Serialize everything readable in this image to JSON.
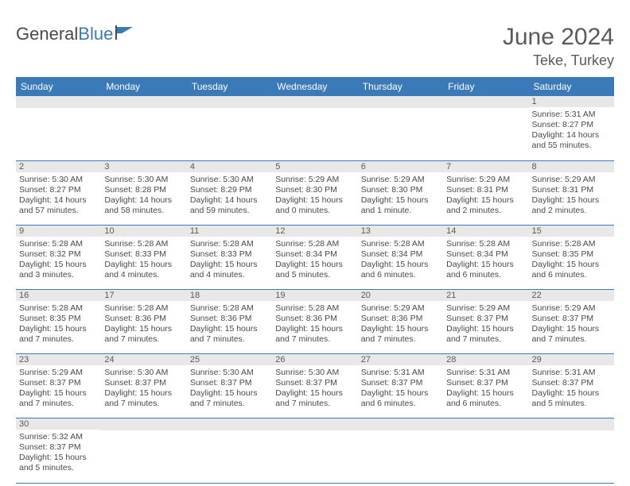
{
  "logo": {
    "text1": "General",
    "text2": "Blue"
  },
  "title": "June 2024",
  "location": "Teke, Turkey",
  "header_color": "#3b7ab8",
  "day_bg": "#e8e8e8",
  "weekdays": [
    "Sunday",
    "Monday",
    "Tuesday",
    "Wednesday",
    "Thursday",
    "Friday",
    "Saturday"
  ],
  "weeks": [
    [
      null,
      null,
      null,
      null,
      null,
      null,
      {
        "n": "1",
        "sr": "5:31 AM",
        "ss": "8:27 PM",
        "dl": "14 hours and 55 minutes."
      }
    ],
    [
      {
        "n": "2",
        "sr": "5:30 AM",
        "ss": "8:27 PM",
        "dl": "14 hours and 57 minutes."
      },
      {
        "n": "3",
        "sr": "5:30 AM",
        "ss": "8:28 PM",
        "dl": "14 hours and 58 minutes."
      },
      {
        "n": "4",
        "sr": "5:30 AM",
        "ss": "8:29 PM",
        "dl": "14 hours and 59 minutes."
      },
      {
        "n": "5",
        "sr": "5:29 AM",
        "ss": "8:30 PM",
        "dl": "15 hours and 0 minutes."
      },
      {
        "n": "6",
        "sr": "5:29 AM",
        "ss": "8:30 PM",
        "dl": "15 hours and 1 minute."
      },
      {
        "n": "7",
        "sr": "5:29 AM",
        "ss": "8:31 PM",
        "dl": "15 hours and 2 minutes."
      },
      {
        "n": "8",
        "sr": "5:29 AM",
        "ss": "8:31 PM",
        "dl": "15 hours and 2 minutes."
      }
    ],
    [
      {
        "n": "9",
        "sr": "5:28 AM",
        "ss": "8:32 PM",
        "dl": "15 hours and 3 minutes."
      },
      {
        "n": "10",
        "sr": "5:28 AM",
        "ss": "8:33 PM",
        "dl": "15 hours and 4 minutes."
      },
      {
        "n": "11",
        "sr": "5:28 AM",
        "ss": "8:33 PM",
        "dl": "15 hours and 4 minutes."
      },
      {
        "n": "12",
        "sr": "5:28 AM",
        "ss": "8:34 PM",
        "dl": "15 hours and 5 minutes."
      },
      {
        "n": "13",
        "sr": "5:28 AM",
        "ss": "8:34 PM",
        "dl": "15 hours and 6 minutes."
      },
      {
        "n": "14",
        "sr": "5:28 AM",
        "ss": "8:34 PM",
        "dl": "15 hours and 6 minutes."
      },
      {
        "n": "15",
        "sr": "5:28 AM",
        "ss": "8:35 PM",
        "dl": "15 hours and 6 minutes."
      }
    ],
    [
      {
        "n": "16",
        "sr": "5:28 AM",
        "ss": "8:35 PM",
        "dl": "15 hours and 7 minutes."
      },
      {
        "n": "17",
        "sr": "5:28 AM",
        "ss": "8:36 PM",
        "dl": "15 hours and 7 minutes."
      },
      {
        "n": "18",
        "sr": "5:28 AM",
        "ss": "8:36 PM",
        "dl": "15 hours and 7 minutes."
      },
      {
        "n": "19",
        "sr": "5:28 AM",
        "ss": "8:36 PM",
        "dl": "15 hours and 7 minutes."
      },
      {
        "n": "20",
        "sr": "5:29 AM",
        "ss": "8:36 PM",
        "dl": "15 hours and 7 minutes."
      },
      {
        "n": "21",
        "sr": "5:29 AM",
        "ss": "8:37 PM",
        "dl": "15 hours and 7 minutes."
      },
      {
        "n": "22",
        "sr": "5:29 AM",
        "ss": "8:37 PM",
        "dl": "15 hours and 7 minutes."
      }
    ],
    [
      {
        "n": "23",
        "sr": "5:29 AM",
        "ss": "8:37 PM",
        "dl": "15 hours and 7 minutes."
      },
      {
        "n": "24",
        "sr": "5:30 AM",
        "ss": "8:37 PM",
        "dl": "15 hours and 7 minutes."
      },
      {
        "n": "25",
        "sr": "5:30 AM",
        "ss": "8:37 PM",
        "dl": "15 hours and 7 minutes."
      },
      {
        "n": "26",
        "sr": "5:30 AM",
        "ss": "8:37 PM",
        "dl": "15 hours and 7 minutes."
      },
      {
        "n": "27",
        "sr": "5:31 AM",
        "ss": "8:37 PM",
        "dl": "15 hours and 6 minutes."
      },
      {
        "n": "28",
        "sr": "5:31 AM",
        "ss": "8:37 PM",
        "dl": "15 hours and 6 minutes."
      },
      {
        "n": "29",
        "sr": "5:31 AM",
        "ss": "8:37 PM",
        "dl": "15 hours and 5 minutes."
      }
    ],
    [
      {
        "n": "30",
        "sr": "5:32 AM",
        "ss": "8:37 PM",
        "dl": "15 hours and 5 minutes."
      },
      null,
      null,
      null,
      null,
      null,
      null
    ]
  ],
  "labels": {
    "sunrise": "Sunrise: ",
    "sunset": "Sunset: ",
    "daylight": "Daylight: "
  }
}
